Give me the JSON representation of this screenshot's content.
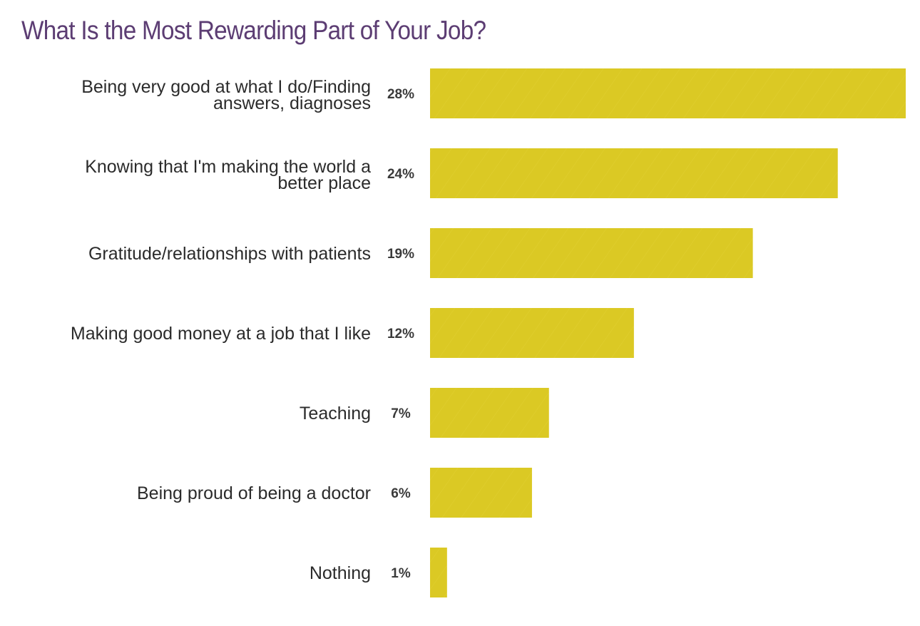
{
  "colors": {
    "title": "#5c3d73",
    "bar": "#dbc924",
    "bar_pattern": "#e6d642",
    "label": "#2b2b2b",
    "value": "#3a3a3a"
  },
  "chart_data": {
    "type": "bar",
    "orientation": "horizontal",
    "title": "What Is the Most Rewarding Part of Your Job?",
    "xlabel": "",
    "ylabel": "",
    "xlim": [
      0,
      28
    ],
    "grid": false,
    "legend": "none",
    "unit": "%",
    "categories": [
      [
        "Being very good at what I do/Finding",
        "answers, diagnoses"
      ],
      [
        "Knowing that I'm making the world a",
        "better place"
      ],
      [
        "Gratitude/relationships with patients"
      ],
      [
        "Making good money at a job that I like"
      ],
      [
        "Teaching"
      ],
      [
        "Being proud of being a doctor"
      ],
      [
        "Nothing"
      ]
    ],
    "values": [
      28,
      24,
      19,
      12,
      7,
      6,
      1
    ],
    "value_labels": [
      "28%",
      "24%",
      "19%",
      "12%",
      "7%",
      "6%",
      "1%"
    ]
  }
}
